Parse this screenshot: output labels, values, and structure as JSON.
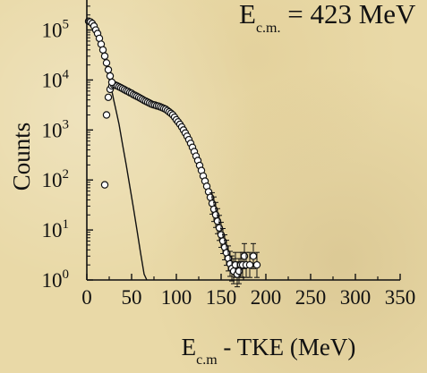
{
  "chart_data": {
    "type": "scatter",
    "xlabel_main": "E",
    "xlabel_sub": "c.m",
    "xlabel_rest": " - TKE (MeV)",
    "ylabel": "Counts",
    "annotation": {
      "main": "E",
      "sub": "c.m.",
      "rest": " = 423 MeV"
    },
    "xlim": [
      0,
      350
    ],
    "ylim_log10": [
      0,
      5.6
    ],
    "y_scale": "log",
    "x_ticks": [
      "0",
      "50",
      "100",
      "150",
      "200",
      "250",
      "300",
      "350"
    ],
    "x_tick_values": [
      0,
      50,
      100,
      150,
      200,
      250,
      300,
      350
    ],
    "y_ticks": [
      {
        "base": "10",
        "exp": "0",
        "value": 1
      },
      {
        "base": "10",
        "exp": "1",
        "value": 10
      },
      {
        "base": "10",
        "exp": "2",
        "value": 100
      },
      {
        "base": "10",
        "exp": "3",
        "value": 1000
      },
      {
        "base": "10",
        "exp": "4",
        "value": 10000
      },
      {
        "base": "10",
        "exp": "5",
        "value": 100000
      }
    ],
    "series": [
      {
        "style": "line",
        "color": "#111111",
        "x": [
          0,
          2,
          4,
          6,
          8,
          10,
          12,
          14,
          16,
          18,
          20,
          22,
          24,
          26,
          28,
          30,
          33,
          36,
          40,
          44,
          48,
          52,
          56,
          60,
          64,
          67
        ],
        "y": [
          150000,
          148000,
          140000,
          125000,
          110000,
          92000,
          75000,
          58000,
          45000,
          34000,
          25000,
          18000,
          12500,
          8500,
          6000,
          4000,
          2300,
          1300,
          500,
          200,
          75,
          28,
          10,
          3.5,
          1.3,
          1
        ]
      },
      {
        "style": "open-circle",
        "color": "#111111",
        "x": [
          20,
          22,
          24,
          26,
          28,
          30,
          32,
          34,
          36,
          38,
          40,
          42,
          44,
          46,
          48,
          50,
          52,
          54,
          56,
          58,
          60,
          62,
          64,
          66,
          68,
          70,
          72,
          74,
          76,
          78,
          80,
          82,
          84,
          86,
          88,
          90,
          92,
          94,
          96,
          98,
          100,
          102,
          104,
          106,
          108,
          110,
          112,
          114,
          116,
          118,
          120,
          122,
          124,
          126,
          128,
          130,
          132,
          134,
          136,
          138,
          140,
          142,
          144,
          146,
          148,
          150,
          152,
          154,
          156,
          158,
          160,
          162,
          164,
          166,
          168,
          170,
          172,
          174,
          176,
          178,
          182,
          186,
          190
        ],
        "y": [
          80,
          2000,
          4500,
          6500,
          7600,
          8000,
          7900,
          7600,
          7300,
          7000,
          6700,
          6400,
          6100,
          5900,
          5600,
          5400,
          5100,
          4900,
          4700,
          4500,
          4300,
          4100,
          3900,
          3750,
          3600,
          3450,
          3300,
          3200,
          3150,
          3050,
          3000,
          2900,
          2800,
          2700,
          2600,
          2450,
          2300,
          2150,
          2000,
          1800,
          1600,
          1450,
          1300,
          1150,
          1000,
          870,
          750,
          640,
          540,
          450,
          370,
          300,
          245,
          195,
          155,
          120,
          95,
          75,
          58,
          45,
          34,
          26,
          20,
          15,
          11,
          8,
          6,
          4.5,
          3.5,
          2.7,
          2.1,
          1.7,
          1.5,
          2,
          1.3,
          1.5,
          2,
          2,
          3,
          2,
          2,
          3,
          2
        ]
      },
      {
        "style": "open-circle",
        "color": "#111111",
        "x": [
          2,
          4,
          6,
          8,
          10,
          12,
          14,
          16,
          18,
          20,
          22,
          24,
          26,
          28
        ],
        "y": [
          150000,
          145000,
          135000,
          120000,
          100000,
          85000,
          68000,
          52000,
          40000,
          30000,
          22000,
          16000,
          12000,
          9000
        ]
      }
    ]
  }
}
